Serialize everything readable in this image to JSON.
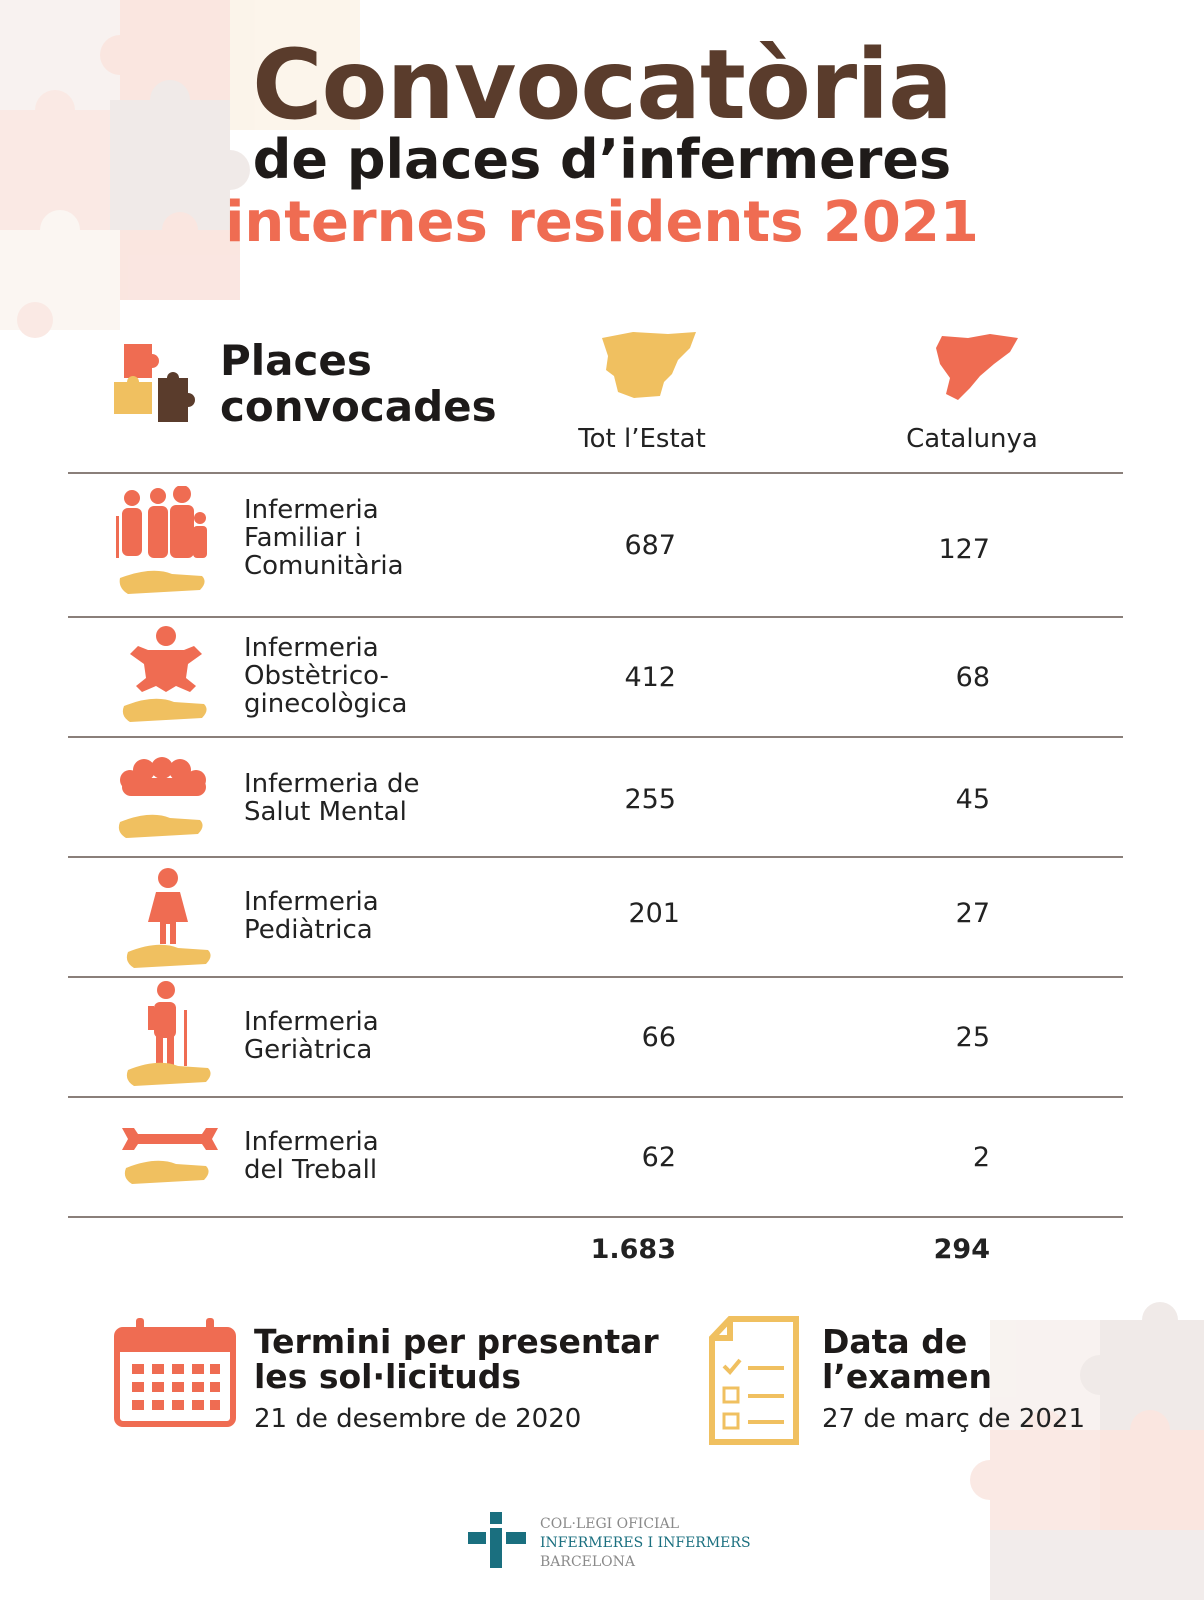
{
  "title": {
    "line1": "Convocatòria",
    "line2": "de places d’infermeres",
    "line3": "internes residents 2021"
  },
  "table": {
    "header_title_1": "Places",
    "header_title_2": "convocades",
    "columns": [
      "Tot l’Estat",
      "Catalunya"
    ],
    "rows": [
      {
        "label_lines": [
          "Infermeria",
          "Familiar i",
          "Comunitària"
        ],
        "estat": "687",
        "catalunya": "127",
        "icon": "family-icon"
      },
      {
        "label_lines": [
          "Infermeria",
          "Obstètrico-",
          "ginecològica"
        ],
        "estat": "412",
        "catalunya": "68",
        "icon": "baby-icon"
      },
      {
        "label_lines": [
          "Infermeria de",
          "Salut Mental"
        ],
        "estat": "255",
        "catalunya": "45",
        "icon": "brain-icon"
      },
      {
        "label_lines": [
          "Infermeria",
          "Pediàtrica"
        ],
        "estat": "201",
        "catalunya": "27",
        "icon": "child-icon"
      },
      {
        "label_lines": [
          "Infermeria",
          "Geriàtrica"
        ],
        "estat": "66",
        "catalunya": "25",
        "icon": "elderly-icon"
      },
      {
        "label_lines": [
          "Infermeria",
          "del Treball"
        ],
        "estat": "62",
        "catalunya": "2",
        "icon": "wrench-icon"
      }
    ],
    "totals": {
      "estat": "1.683",
      "catalunya": "294"
    }
  },
  "deadline": {
    "title_1": "Termini per presentar",
    "title_2": "les sol·licituds",
    "date": "21 de desembre de 2020"
  },
  "exam": {
    "title_1": "Data de",
    "title_2": "l’examen",
    "date": "27 de març de 2021"
  },
  "logo": {
    "line1": "COL·LEGI OFICIAL",
    "line2": "INFERMERES I INFERMERS",
    "line3": "BARCELONA"
  },
  "colors": {
    "brown": "#5a3c2c",
    "coral": "#ef6c52",
    "yellow": "#f0c060",
    "teal": "#1a6f7f"
  }
}
